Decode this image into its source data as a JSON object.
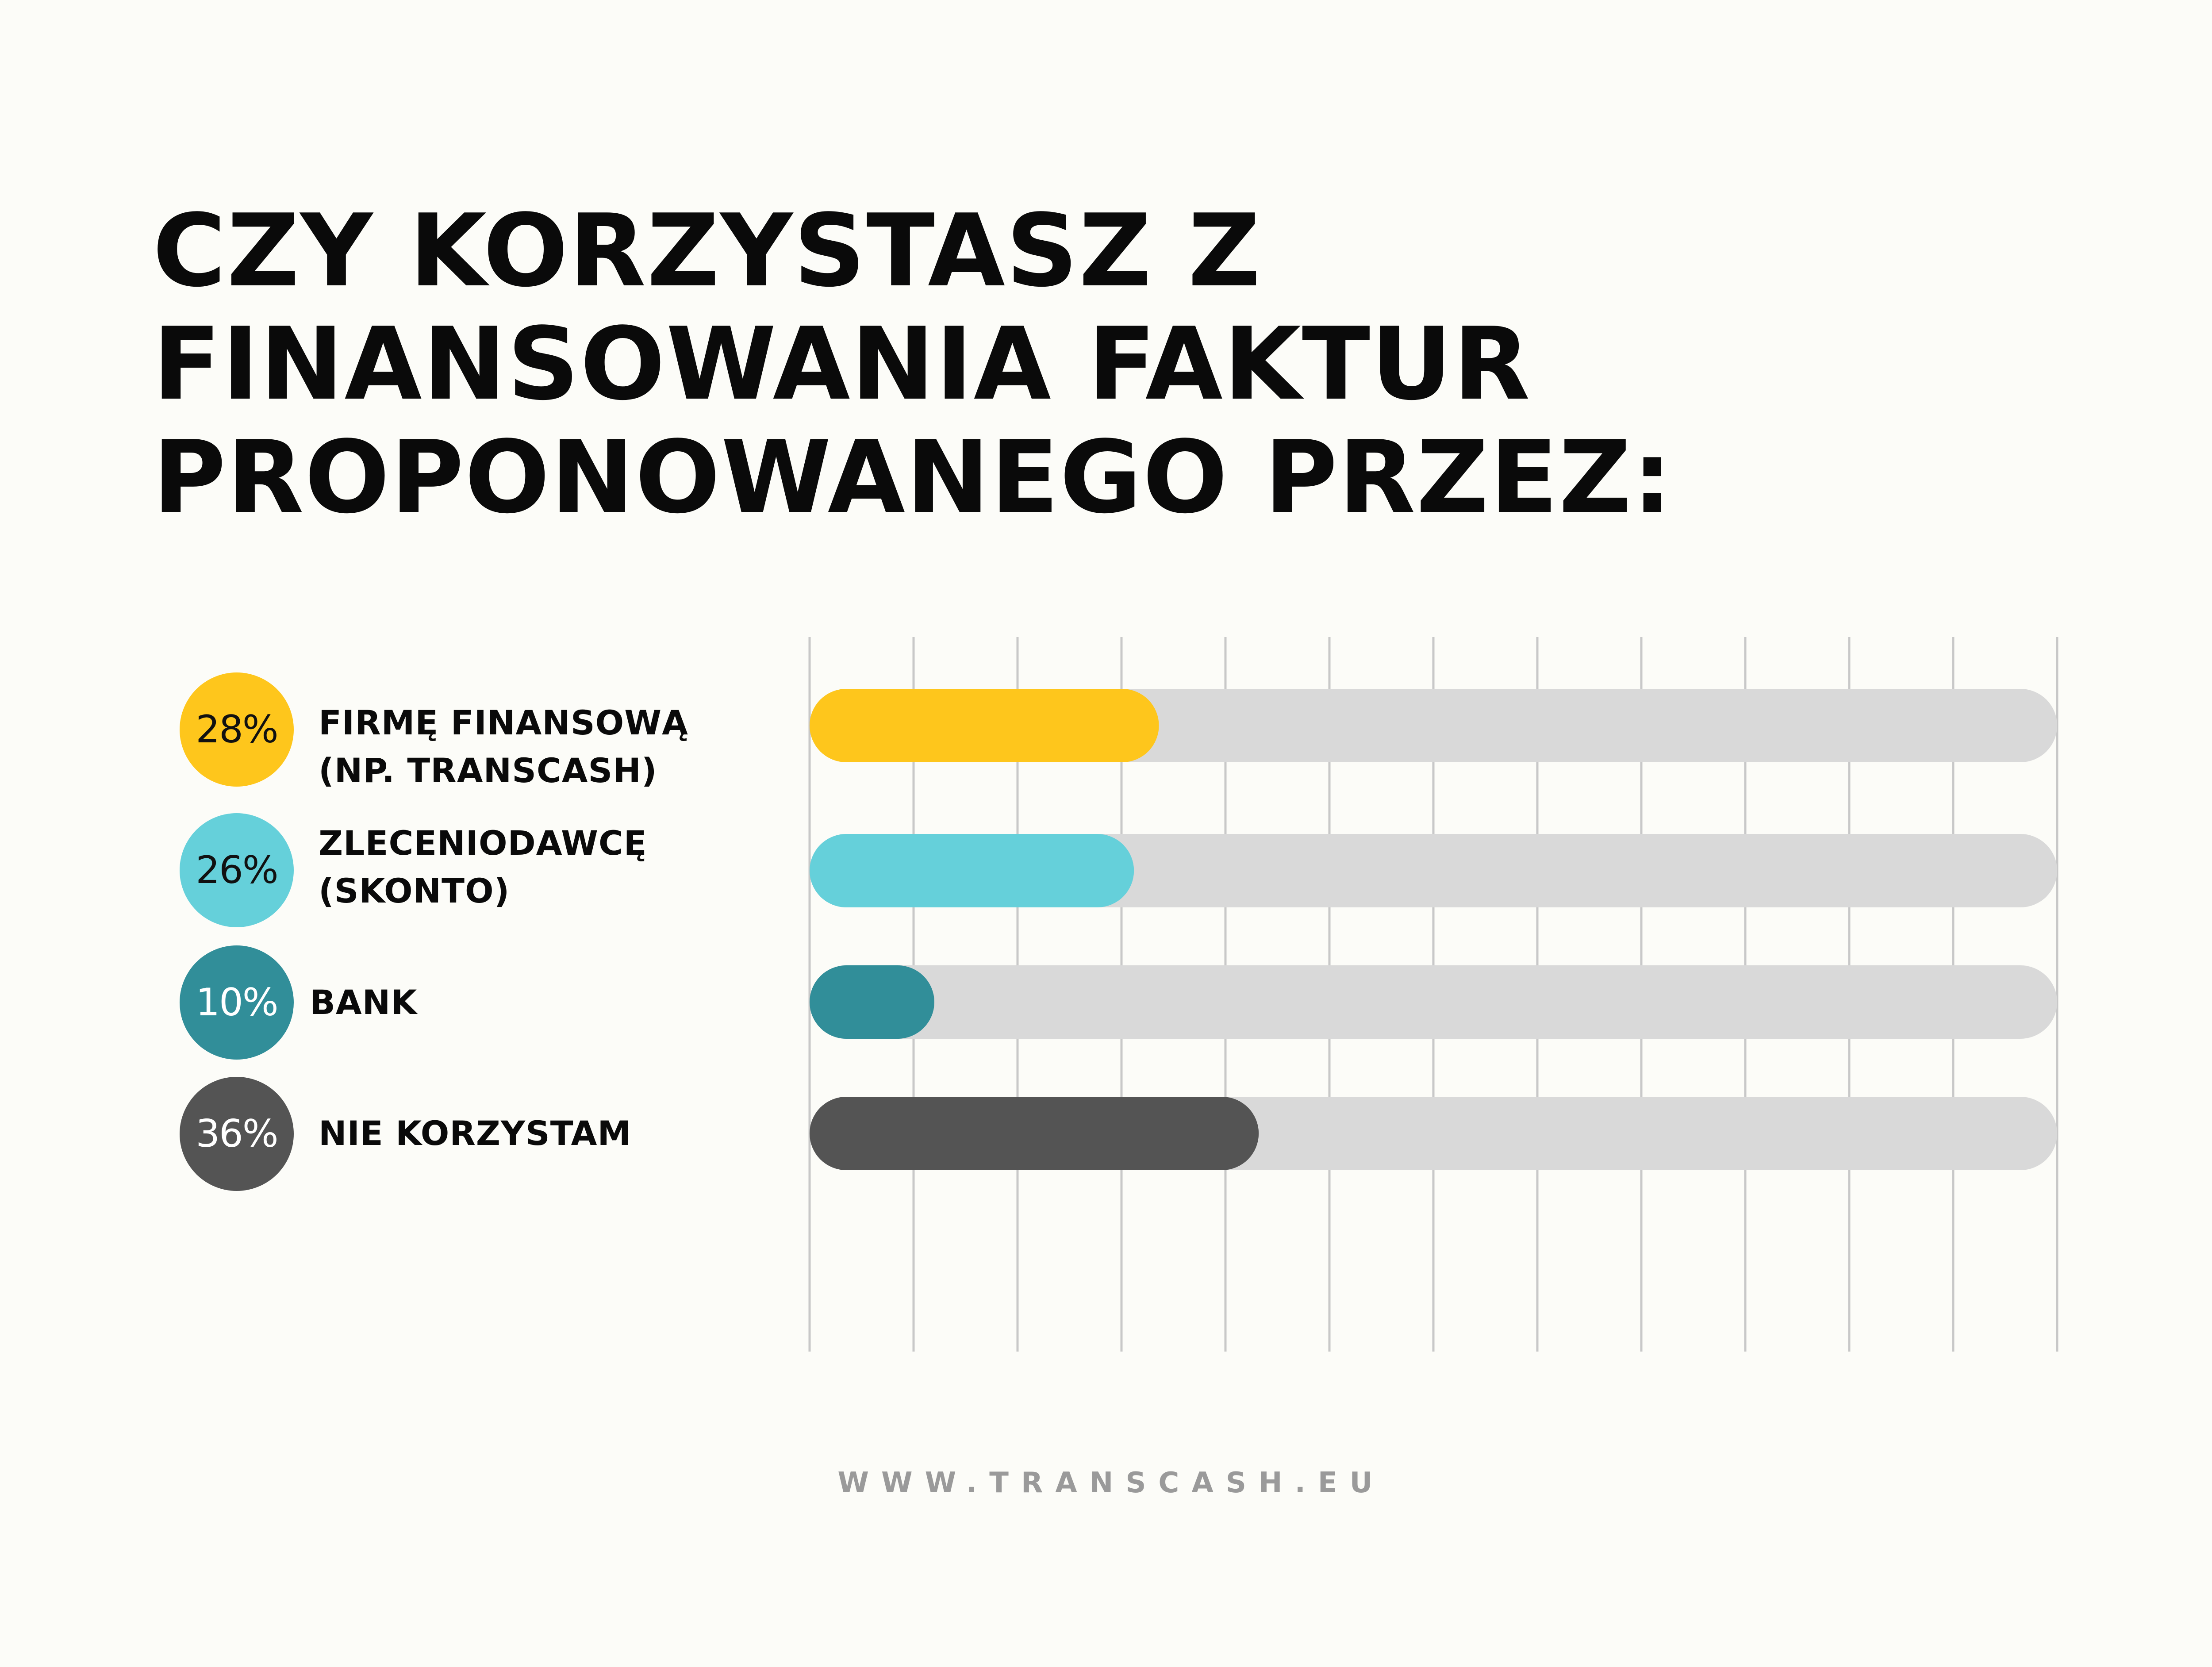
{
  "title_lines": [
    "CZY KORZYSTASZ Z",
    "FINANSOWANIA FAKTUR",
    "PROPONOWANEGO PRZEZ:"
  ],
  "items": [
    {
      "percent_label": "28%",
      "label_lines": [
        "FIRMĘ FINANSOWĄ",
        "(NP. TRANSCASH)"
      ],
      "color": "#fec61c",
      "text_color": "#111111"
    },
    {
      "percent_label": "26%",
      "label_lines": [
        "ZLECENIODAWCĘ",
        "(SKONTO)"
      ],
      "color": "#65d0da",
      "text_color": "#111111"
    },
    {
      "percent_label": "10%",
      "label_lines": [
        "BANK"
      ],
      "color": "#318e99",
      "text_color": "#ffffff"
    },
    {
      "percent_label": "36%",
      "label_lines": [
        "NIE KORZYSTAM"
      ],
      "color": "#545454",
      "text_color": "#ffffff"
    }
  ],
  "footer": "WWW.TRANSCASH.EU",
  "colors": {
    "background": "#fcfcf8",
    "track": "#d9d9d9",
    "grid": "#c8c8c8",
    "text": "#0a0a0a",
    "footer": "#9a9a9a"
  },
  "chart_data": {
    "type": "bar",
    "orientation": "horizontal",
    "title": "CZY KORZYSTASZ Z FINANSOWANIA FAKTUR PROPONOWANEGO PRZEZ:",
    "categories": [
      "FIRMĘ FINANSOWĄ (NP. TRANSCASH)",
      "ZLECENIODAWCĘ (SKONTO)",
      "BANK",
      "NIE KORZYSTAM"
    ],
    "values": [
      28,
      26,
      10,
      36
    ],
    "unit": "%",
    "xlim": [
      0,
      100
    ],
    "grid": true,
    "grid_divisions": 12,
    "legend": "none"
  }
}
